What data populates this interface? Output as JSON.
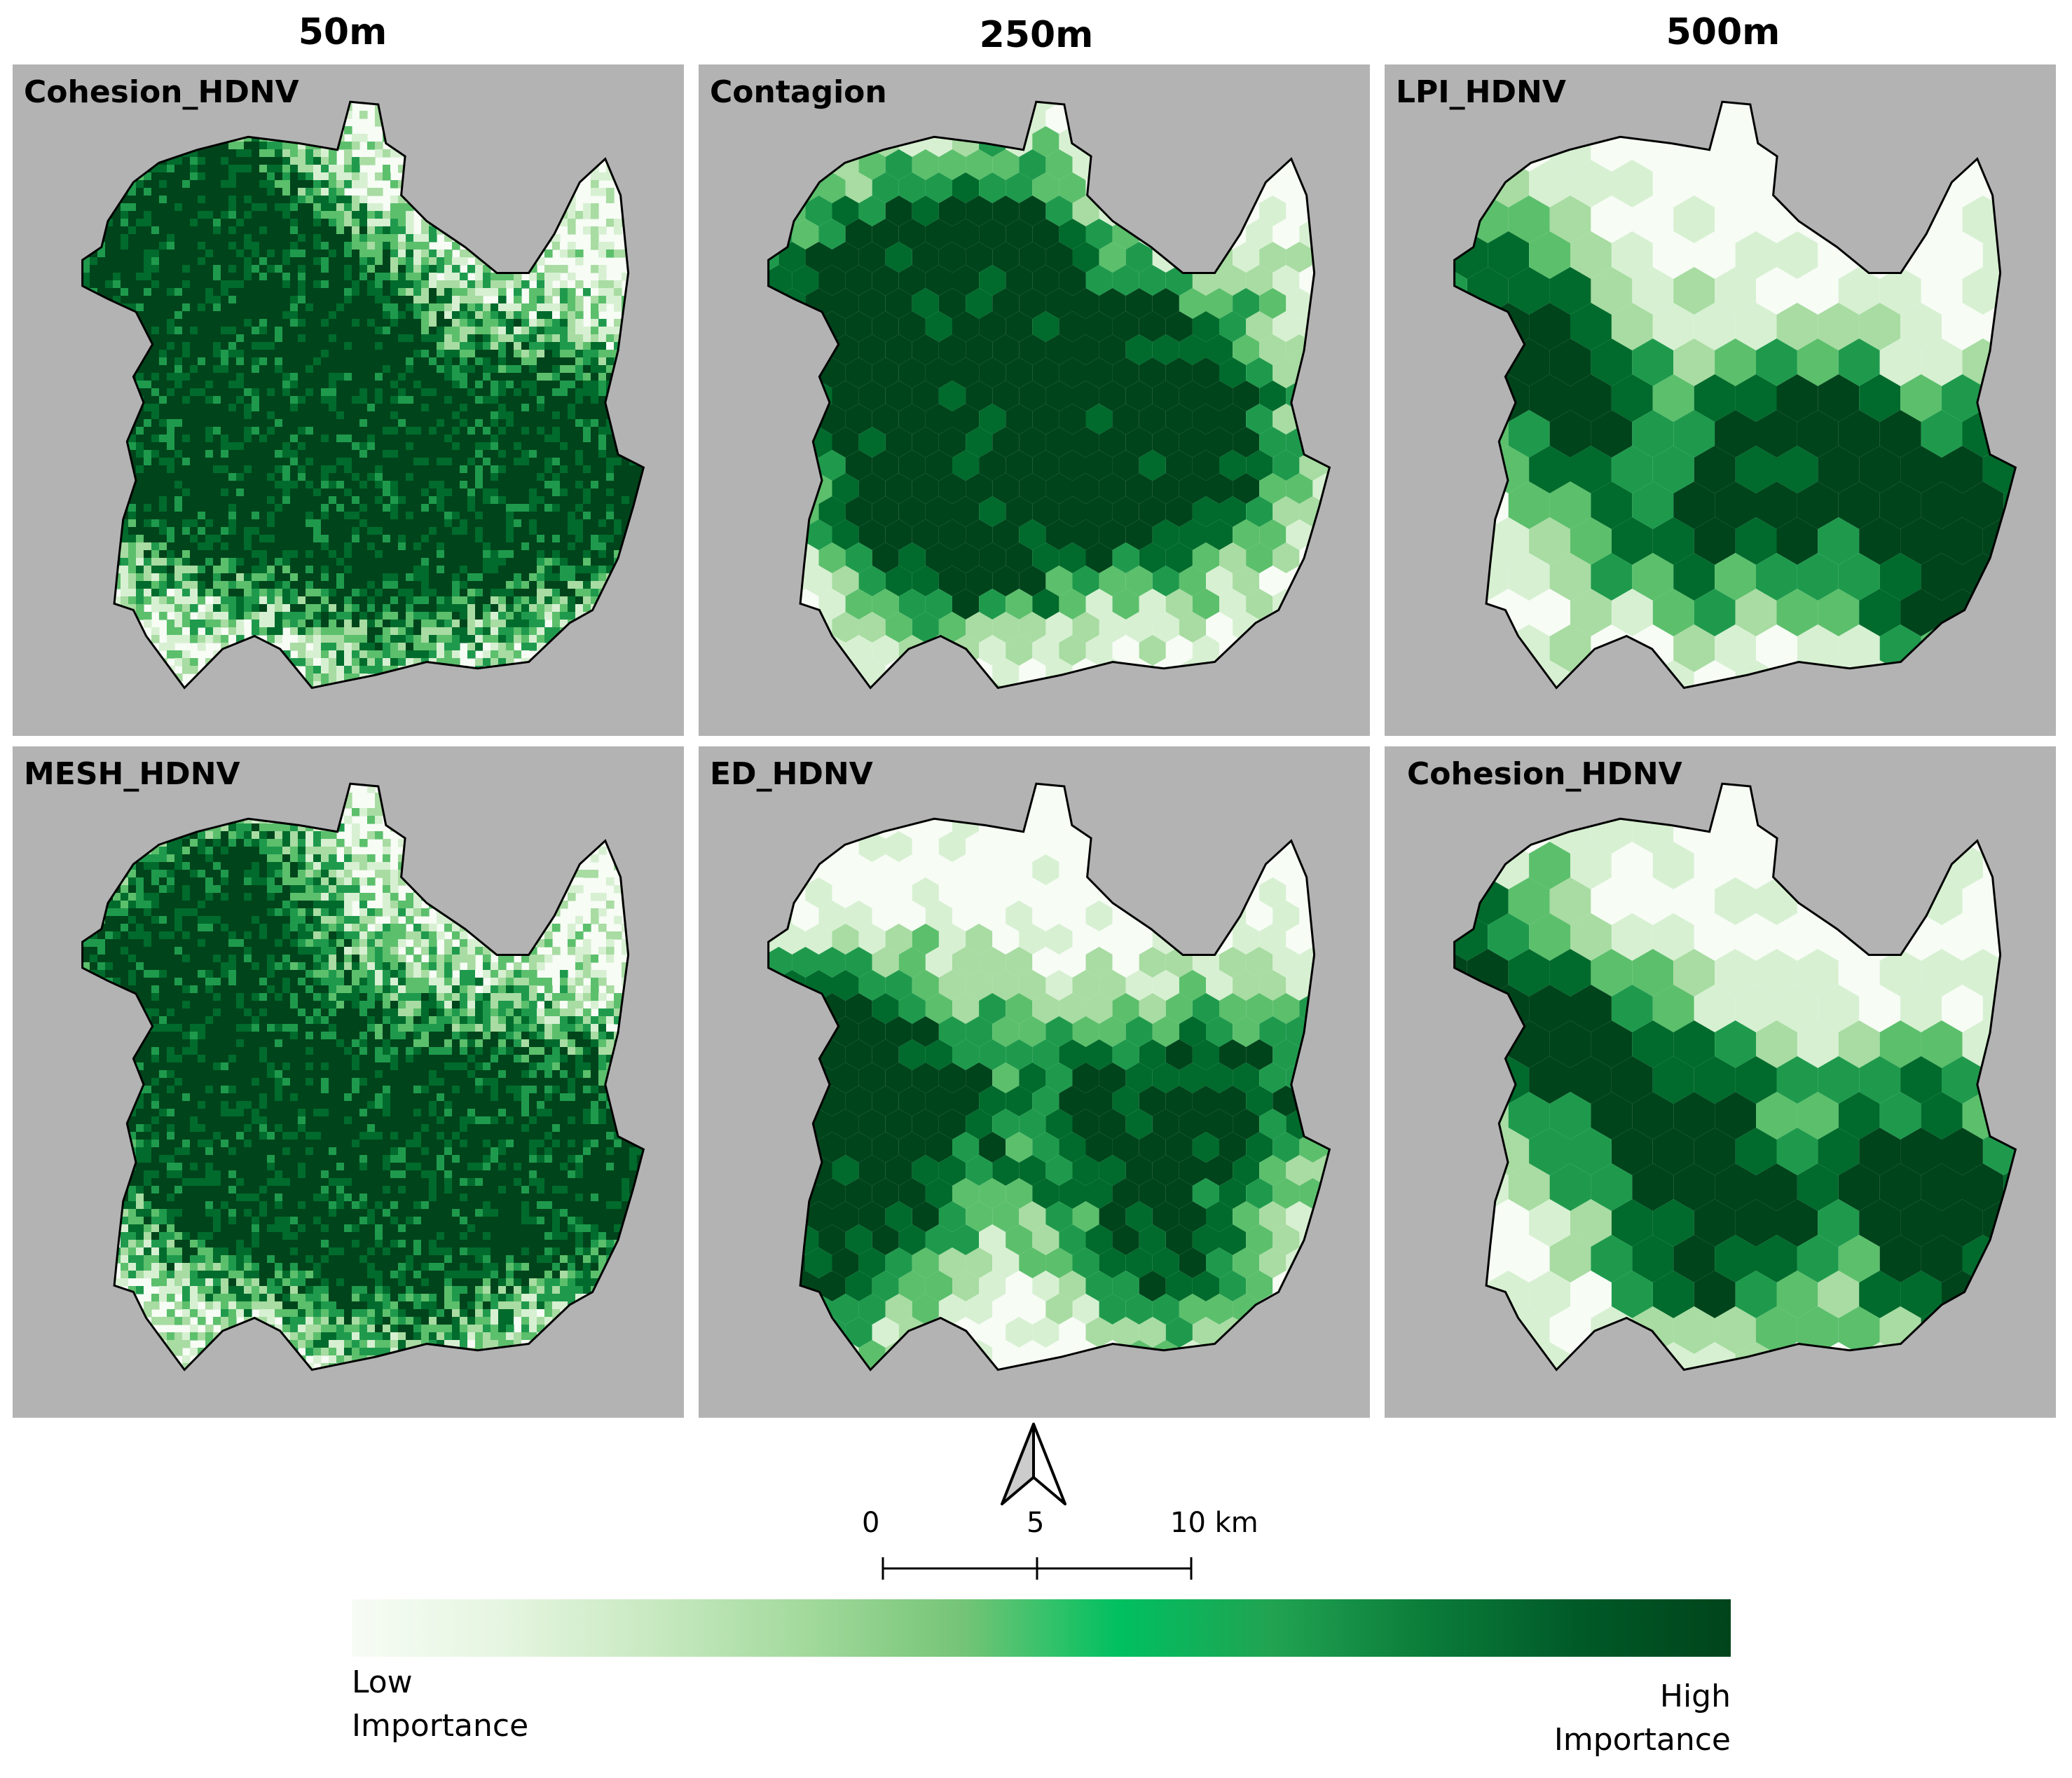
{
  "columns": [
    {
      "label": "50m"
    },
    {
      "label": "250m"
    },
    {
      "label": "500m"
    }
  ],
  "panels": [
    {
      "title": "Cohesion_HDNV",
      "scale": "50m",
      "texture": "fine",
      "hot": [
        [
          0.12,
          0.32,
          0.32
        ],
        [
          0.3,
          0.18,
          0.25
        ],
        [
          0.38,
          0.5,
          0.38
        ],
        [
          0.72,
          0.56,
          0.35
        ],
        [
          0.9,
          0.62,
          0.28
        ],
        [
          0.55,
          0.72,
          0.3
        ],
        [
          0.25,
          0.62,
          0.25
        ],
        [
          0.45,
          0.35,
          0.2
        ]
      ]
    },
    {
      "title": "Contagion",
      "scale": "250m",
      "texture": "hex-small",
      "hot": [
        [
          0.32,
          0.55,
          0.42
        ],
        [
          0.55,
          0.52,
          0.4
        ],
        [
          0.72,
          0.55,
          0.32
        ],
        [
          0.38,
          0.7,
          0.2
        ],
        [
          0.22,
          0.35,
          0.25
        ],
        [
          0.42,
          0.24,
          0.22
        ]
      ]
    },
    {
      "title": "LPI_HDNV",
      "scale": "500m",
      "texture": "hex-large",
      "hot": [
        [
          0.1,
          0.32,
          0.3
        ],
        [
          0.42,
          0.66,
          0.34
        ],
        [
          0.82,
          0.65,
          0.3
        ],
        [
          0.9,
          0.78,
          0.25
        ],
        [
          0.62,
          0.56,
          0.22
        ],
        [
          0.25,
          0.45,
          0.2
        ]
      ]
    },
    {
      "title": "MESH_HDNV",
      "scale": "50m",
      "texture": "fine",
      "hot": [
        [
          0.15,
          0.35,
          0.3
        ],
        [
          0.32,
          0.2,
          0.25
        ],
        [
          0.42,
          0.5,
          0.38
        ],
        [
          0.72,
          0.58,
          0.35
        ],
        [
          0.9,
          0.62,
          0.28
        ],
        [
          0.55,
          0.74,
          0.3
        ],
        [
          0.28,
          0.64,
          0.25
        ]
      ]
    },
    {
      "title": "ED_HDNV",
      "scale": "250m",
      "texture": "hex-small",
      "hot": [
        [
          0.3,
          0.55,
          0.35
        ],
        [
          0.15,
          0.76,
          0.28
        ],
        [
          0.62,
          0.55,
          0.25
        ],
        [
          0.85,
          0.5,
          0.28
        ],
        [
          0.7,
          0.78,
          0.22
        ],
        [
          0.18,
          0.45,
          0.25
        ]
      ]
    },
    {
      "title": "Cohesion_HDNV",
      "scale": "500m",
      "texture": "hex-large",
      "hot": [
        [
          0.1,
          0.32,
          0.3
        ],
        [
          0.45,
          0.6,
          0.32
        ],
        [
          0.82,
          0.62,
          0.32
        ],
        [
          0.9,
          0.78,
          0.25
        ],
        [
          0.5,
          0.76,
          0.22
        ],
        [
          0.28,
          0.45,
          0.22
        ]
      ]
    }
  ],
  "scale_bar": {
    "labels": [
      "0",
      "5",
      "10 km"
    ]
  },
  "legend": {
    "low_label": "Low\nImportance",
    "high_label": "High\nImportance",
    "colors": [
      "#f7fcf5",
      "#e5f5e0",
      "#c7e9c0",
      "#a1d99b",
      "#74c476",
      "#00c060",
      "#21a352",
      "#0b7d3a",
      "#005a28",
      "#00441b"
    ]
  },
  "colors": {
    "background": "#b3b3b3",
    "ramp": [
      "#f7fcf5",
      "#d7f0d2",
      "#a8dca2",
      "#5cbf6c",
      "#1f9a4d",
      "#006b2c",
      "#00441b"
    ]
  }
}
